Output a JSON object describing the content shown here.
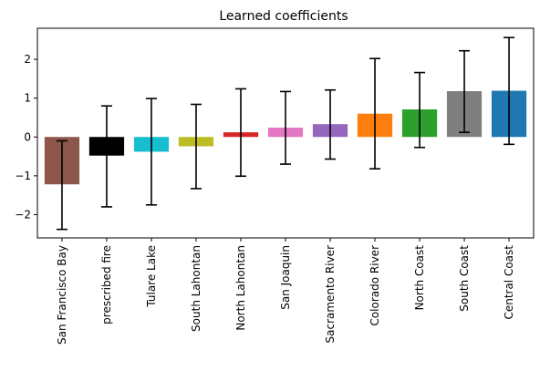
{
  "chart_data": {
    "type": "bar",
    "title": "Learned coefficients",
    "xlabel": "",
    "ylabel": "",
    "ylim": [
      -2.6,
      2.8
    ],
    "yticks": [
      -2,
      -1,
      0,
      1,
      2
    ],
    "grid": false,
    "categories": [
      "San Francisco Bay",
      "prescribed fire",
      "Tulare Lake",
      "South Lahontan",
      "North Lahontan",
      "San Joaquin",
      "Sacramento River",
      "Colorado River",
      "North Coast",
      "South Coast",
      "Central Coast"
    ],
    "values": [
      -1.22,
      -0.48,
      -0.38,
      -0.24,
      0.12,
      0.24,
      0.33,
      0.6,
      0.71,
      1.18,
      1.19
    ],
    "error_low": [
      -2.38,
      -1.8,
      -1.75,
      -1.33,
      -1.01,
      -0.7,
      -0.57,
      -0.82,
      -0.27,
      0.12,
      -0.19
    ],
    "error_high": [
      -0.1,
      0.8,
      0.99,
      0.84,
      1.24,
      1.17,
      1.21,
      2.02,
      1.66,
      2.22,
      2.56
    ],
    "colors": [
      "#8c564b",
      "#000000",
      "#17becf",
      "#bcbd22",
      "#d62728",
      "#e377c2",
      "#9467bd",
      "#ff7f0e",
      "#2ca02c",
      "#7f7f7f",
      "#1f77b4"
    ]
  }
}
